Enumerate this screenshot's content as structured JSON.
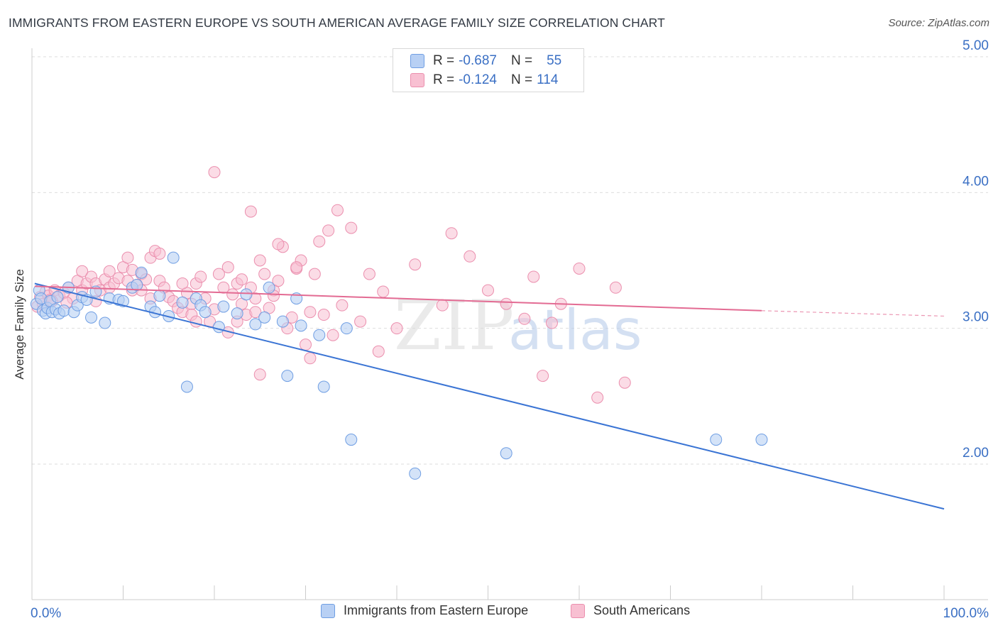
{
  "title": "IMMIGRANTS FROM EASTERN EUROPE VS SOUTH AMERICAN AVERAGE FAMILY SIZE CORRELATION CHART",
  "source": "Source: ZipAtlas.com",
  "watermark": {
    "zip": "ZIP",
    "atlas": "atlas"
  },
  "legend_top": [
    {
      "r_label": "R =",
      "r_value": "-0.687",
      "n_label": "N =",
      "n_value": "55"
    },
    {
      "r_label": "R =",
      "r_value": "-0.124",
      "n_label": "N =",
      "n_value": "114"
    }
  ],
  "colors": {
    "blue_fill": "#b8d0f4",
    "blue_stroke": "#6f9ee3",
    "blue_line": "#3a74d4",
    "pink_fill": "#f8c0d2",
    "pink_stroke": "#eb8fae",
    "pink_line": "#e36b93",
    "axis_label": "#3a6fc4",
    "grid": "#dddddd"
  },
  "chart_data": {
    "type": "scatter",
    "title": "IMMIGRANTS FROM EASTERN EUROPE VS SOUTH AMERICAN AVERAGE FAMILY SIZE CORRELATION CHART",
    "xlabel": "",
    "ylabel": "Average Family Size",
    "xlim": [
      0,
      100
    ],
    "ylim": [
      1.0,
      5.12
    ],
    "x_tick_labels": [
      {
        "value": 0,
        "label": "0.0%"
      },
      {
        "value": 100,
        "label": "100.0%"
      }
    ],
    "y_ticks": [
      {
        "value": 2.0,
        "label": "2.00"
      },
      {
        "value": 3.0,
        "label": "3.00"
      },
      {
        "value": 4.0,
        "label": "4.00"
      },
      {
        "value": 5.0,
        "label": "5.00"
      }
    ],
    "grid": true,
    "legend_position": "bottom",
    "series": [
      {
        "name": "Immigrants from Eastern Europe",
        "color": "#6f9ee3",
        "trend": {
          "x0": 0.3,
          "y0": 3.33,
          "x1": 100,
          "y1": 1.67
        },
        "points": [
          [
            0.5,
            3.18
          ],
          [
            0.8,
            3.28
          ],
          [
            1.0,
            3.22
          ],
          [
            1.2,
            3.13
          ],
          [
            1.5,
            3.11
          ],
          [
            1.7,
            3.15
          ],
          [
            2.0,
            3.2
          ],
          [
            2.2,
            3.12
          ],
          [
            2.6,
            3.14
          ],
          [
            2.8,
            3.23
          ],
          [
            3.0,
            3.11
          ],
          [
            3.5,
            3.13
          ],
          [
            4.0,
            3.3
          ],
          [
            4.6,
            3.12
          ],
          [
            5.0,
            3.17
          ],
          [
            5.5,
            3.23
          ],
          [
            6.0,
            3.21
          ],
          [
            6.5,
            3.08
          ],
          [
            7.0,
            3.27
          ],
          [
            8.0,
            3.04
          ],
          [
            8.5,
            3.22
          ],
          [
            9.5,
            3.21
          ],
          [
            10.0,
            3.2
          ],
          [
            11.0,
            3.3
          ],
          [
            11.5,
            3.32
          ],
          [
            12.0,
            3.41
          ],
          [
            13.0,
            3.16
          ],
          [
            13.5,
            3.12
          ],
          [
            14.0,
            3.24
          ],
          [
            15.0,
            3.09
          ],
          [
            15.5,
            3.52
          ],
          [
            16.5,
            3.19
          ],
          [
            17.0,
            2.57
          ],
          [
            18.0,
            3.22
          ],
          [
            18.5,
            3.17
          ],
          [
            19.0,
            3.12
          ],
          [
            20.5,
            3.01
          ],
          [
            21.0,
            3.16
          ],
          [
            22.5,
            3.11
          ],
          [
            23.5,
            3.25
          ],
          [
            24.5,
            3.03
          ],
          [
            25.5,
            3.08
          ],
          [
            26.0,
            3.3
          ],
          [
            27.5,
            3.05
          ],
          [
            28.0,
            2.65
          ],
          [
            29.0,
            3.22
          ],
          [
            29.5,
            3.02
          ],
          [
            31.5,
            2.95
          ],
          [
            32.0,
            2.57
          ],
          [
            34.5,
            3.0
          ],
          [
            35.0,
            2.18
          ],
          [
            42.0,
            1.93
          ],
          [
            52.0,
            2.08
          ],
          [
            75.0,
            2.18
          ],
          [
            80.0,
            2.18
          ]
        ]
      },
      {
        "name": "South Americans",
        "color": "#eb8fae",
        "trend": {
          "x0": 0.3,
          "y0": 3.31,
          "x1": 80,
          "y1": 3.13
        },
        "trend_dashed": {
          "x0": 80,
          "y0": 3.13,
          "x1": 100,
          "y1": 3.09
        },
        "points": [
          [
            0.6,
            3.16
          ],
          [
            0.9,
            3.23
          ],
          [
            1.2,
            3.18
          ],
          [
            1.5,
            3.27
          ],
          [
            1.8,
            3.24
          ],
          [
            2.0,
            3.21
          ],
          [
            2.5,
            3.28
          ],
          [
            3.0,
            3.24
          ],
          [
            3.5,
            3.26
          ],
          [
            4.0,
            3.3
          ],
          [
            4.5,
            3.22
          ],
          [
            5.0,
            3.35
          ],
          [
            5.5,
            3.28
          ],
          [
            6.0,
            3.33
          ],
          [
            6.5,
            3.38
          ],
          [
            7.0,
            3.33
          ],
          [
            7.5,
            3.28
          ],
          [
            8.0,
            3.36
          ],
          [
            8.5,
            3.3
          ],
          [
            9.0,
            3.33
          ],
          [
            9.5,
            3.37
          ],
          [
            10.0,
            3.45
          ],
          [
            10.5,
            3.35
          ],
          [
            11.0,
            3.28
          ],
          [
            11.5,
            3.32
          ],
          [
            12.0,
            3.4
          ],
          [
            12.5,
            3.36
          ],
          [
            13.0,
            3.52
          ],
          [
            13.5,
            3.57
          ],
          [
            14.0,
            3.35
          ],
          [
            14.5,
            3.3
          ],
          [
            15.0,
            3.23
          ],
          [
            15.5,
            3.2
          ],
          [
            16.0,
            3.15
          ],
          [
            16.5,
            3.12
          ],
          [
            17.0,
            3.26
          ],
          [
            17.5,
            3.18
          ],
          [
            18.0,
            3.33
          ],
          [
            18.5,
            3.38
          ],
          [
            19.0,
            3.22
          ],
          [
            19.5,
            3.05
          ],
          [
            20.0,
            3.14
          ],
          [
            20.5,
            3.4
          ],
          [
            21.0,
            3.3
          ],
          [
            21.5,
            3.45
          ],
          [
            22.0,
            3.25
          ],
          [
            22.5,
            3.33
          ],
          [
            23.0,
            3.18
          ],
          [
            23.5,
            3.1
          ],
          [
            24.0,
            3.3
          ],
          [
            24.5,
            3.22
          ],
          [
            25.0,
            3.5
          ],
          [
            25.5,
            3.4
          ],
          [
            26.0,
            3.15
          ],
          [
            26.5,
            3.28
          ],
          [
            27.0,
            3.35
          ],
          [
            27.5,
            3.6
          ],
          [
            28.0,
            3.0
          ],
          [
            28.5,
            3.08
          ],
          [
            29.0,
            3.44
          ],
          [
            29.5,
            3.5
          ],
          [
            30.0,
            2.88
          ],
          [
            30.5,
            3.12
          ],
          [
            31.0,
            3.4
          ],
          [
            31.5,
            3.64
          ],
          [
            32.0,
            3.1
          ],
          [
            32.5,
            3.72
          ],
          [
            33.0,
            2.95
          ],
          [
            33.5,
            3.87
          ],
          [
            34.0,
            3.17
          ],
          [
            35.0,
            3.74
          ],
          [
            36.0,
            3.05
          ],
          [
            37.0,
            3.4
          ],
          [
            38.0,
            2.83
          ],
          [
            38.5,
            3.27
          ],
          [
            40.0,
            3.0
          ],
          [
            42.0,
            3.47
          ],
          [
            45.0,
            3.17
          ],
          [
            46.0,
            3.7
          ],
          [
            48.0,
            3.53
          ],
          [
            50.0,
            3.28
          ],
          [
            52.0,
            3.18
          ],
          [
            54.0,
            3.07
          ],
          [
            55.0,
            3.38
          ],
          [
            56.0,
            2.65
          ],
          [
            57.0,
            3.04
          ],
          [
            58.0,
            3.18
          ],
          [
            60.0,
            3.44
          ],
          [
            62.0,
            2.49
          ],
          [
            64.0,
            3.3
          ],
          [
            65.0,
            2.6
          ],
          [
            20.0,
            4.15
          ],
          [
            24.0,
            3.86
          ],
          [
            10.5,
            3.52
          ],
          [
            14.0,
            3.55
          ],
          [
            29.0,
            3.45
          ],
          [
            25.0,
            2.66
          ],
          [
            26.5,
            3.24
          ],
          [
            23.0,
            3.36
          ],
          [
            27.0,
            3.62
          ],
          [
            16.5,
            3.33
          ],
          [
            11.0,
            3.43
          ],
          [
            12.0,
            3.28
          ],
          [
            13.0,
            3.22
          ],
          [
            17.5,
            3.1
          ],
          [
            21.5,
            2.97
          ],
          [
            24.5,
            3.12
          ],
          [
            7.0,
            3.2
          ],
          [
            8.5,
            3.42
          ],
          [
            5.5,
            3.42
          ],
          [
            3.8,
            3.19
          ],
          [
            2.2,
            3.2
          ],
          [
            18.0,
            3.05
          ],
          [
            22.5,
            3.05
          ],
          [
            30.5,
            2.78
          ]
        ]
      }
    ]
  }
}
